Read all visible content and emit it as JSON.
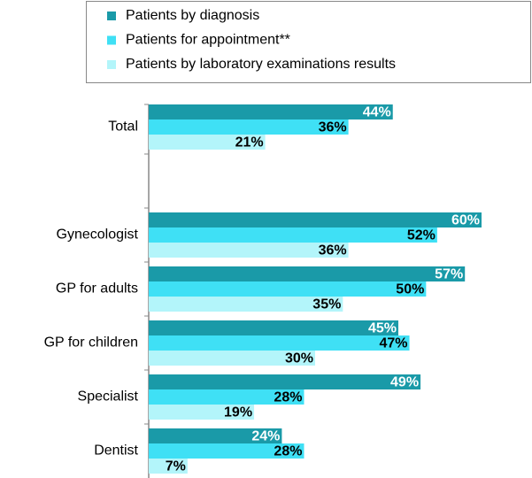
{
  "chart_data": {
    "type": "hbar",
    "categories": [
      "Total",
      null,
      "Gynecologist",
      "GP for adults",
      "GP for children",
      "Specialist",
      "Dentist"
    ],
    "series": [
      {
        "name": "Patients by diagnosis",
        "color": "#1a9aa8",
        "values": [
          44,
          null,
          60,
          57,
          45,
          49,
          24
        ],
        "value_labels": [
          "44%",
          null,
          "60%",
          "57%",
          "45%",
          "49%",
          "24%"
        ]
      },
      {
        "name": "Patients for appointment**",
        "color": "#3fe0f5",
        "values": [
          36,
          null,
          52,
          50,
          47,
          28,
          28
        ],
        "value_labels": [
          "36%",
          null,
          "52%",
          "50%",
          "47%",
          "28%",
          "28%"
        ]
      },
      {
        "name": "Patients by laboratory examinations results",
        "color": "#b3f5fa",
        "values": [
          21,
          null,
          36,
          35,
          30,
          19,
          7
        ],
        "value_labels": [
          "21%",
          null,
          "36%",
          "35%",
          "30%",
          "19%",
          "7%"
        ]
      }
    ],
    "xlim": [
      0,
      60
    ],
    "legend": "top"
  }
}
